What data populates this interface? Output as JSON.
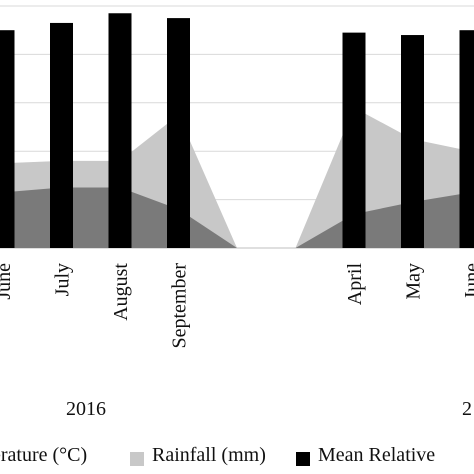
{
  "chart_data": {
    "type": "bar",
    "categories": [
      "June",
      "July",
      "August",
      "September",
      "",
      "",
      "April",
      "May",
      "June"
    ],
    "series": [
      {
        "name": "Mean Relative",
        "kind": "bar",
        "color": "#000000",
        "values": [
          90,
          93,
          97,
          95,
          null,
          null,
          89,
          88,
          90
        ]
      },
      {
        "name": "Rainfall (mm)",
        "kind": "area",
        "color": "#c8c8c8",
        "values": [
          35,
          36,
          36,
          55,
          0,
          0,
          58,
          45,
          40
        ]
      },
      {
        "name": "erature (°C)",
        "kind": "area",
        "color": "#7a7a7a",
        "values": [
          23,
          25,
          25,
          16,
          0,
          0,
          14,
          19,
          23
        ]
      }
    ],
    "ylim": [
      0,
      100
    ],
    "gridlines": [
      0,
      20,
      40,
      60,
      80,
      100
    ],
    "grid": true,
    "year_labels": [
      "2016",
      "2"
    ],
    "legend": {
      "placement": "bottom",
      "items": [
        {
          "label": "erature (°C)",
          "color": "#7a7a7a"
        },
        {
          "label": "Rainfall (mm)",
          "color": "#c8c8c8"
        },
        {
          "label": "Mean Relative",
          "color": "#000000"
        }
      ]
    }
  }
}
